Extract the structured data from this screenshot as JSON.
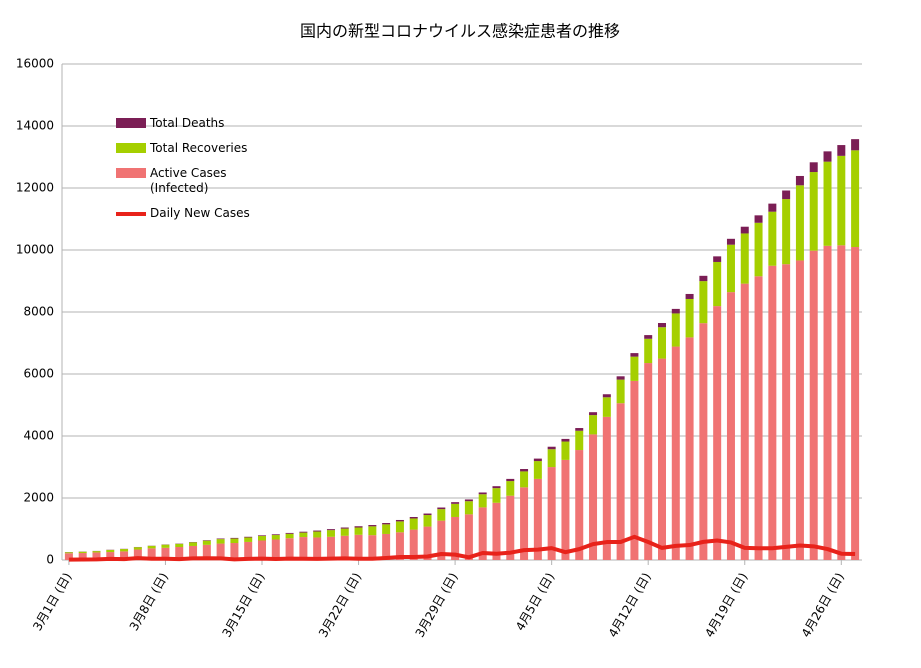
{
  "chart_data": {
    "type": "bar",
    "stacked": true,
    "title": "国内の新型コロナウイルス感染症患者の推移",
    "categories": [
      "3月1日 (日)",
      null,
      null,
      null,
      null,
      null,
      null,
      "3月8日 (日)",
      null,
      null,
      null,
      null,
      null,
      null,
      "3月15日 (日)",
      null,
      null,
      null,
      null,
      null,
      null,
      "3月22日 (日)",
      null,
      null,
      null,
      null,
      null,
      null,
      "3月29日 (日)",
      null,
      null,
      null,
      null,
      null,
      null,
      "4月5日 (日)",
      null,
      null,
      null,
      null,
      null,
      null,
      "4月12日 (日)",
      null,
      null,
      null,
      null,
      null,
      null,
      "4月19日 (日)",
      null,
      null,
      null,
      null,
      null,
      null,
      "4月26日 (日)",
      null
    ],
    "series": [
      {
        "name": "Active Cases (Infected)",
        "color": "#f07373",
        "values": [
          218,
          225,
          244,
          256,
          278,
          338,
          375,
          393,
          419,
          453,
          489,
          530,
          548,
          583,
          629,
          661,
          702,
          740,
          727,
          748,
          781,
          813,
          801,
          840,
          893,
          981,
          1078,
          1269,
          1388,
          1473,
          1697,
          1846,
          2074,
          2344,
          2616,
          2998,
          3229,
          3547,
          4052,
          4617,
          5057,
          5777,
          6353,
          6497,
          6885,
          7181,
          7640,
          8190,
          8641,
          8915,
          9152,
          9492,
          9542,
          9663,
          9979,
          10135,
          10151,
          10096
        ]
      },
      {
        "name": "Total Recoveries",
        "color": "#a5cf00",
        "values": [
          32,
          43,
          43,
          69,
          76,
          76,
          80,
          102,
          102,
          118,
          135,
          144,
          144,
          144,
          144,
          144,
          144,
          144,
          191,
          215,
          232,
          235,
          285,
          310,
          353,
          359,
          372,
          372,
          424,
          424,
          424,
          472,
          472,
          514,
          575,
          575,
          592,
          622,
          622,
          632,
          762,
          783,
          783,
          1012,
          1069,
          1239,
          1356,
          1424,
          1530,
          1619,
          1726,
          1744,
          2100,
          2424,
          2536,
          2715,
          2886,
          3120
        ]
      },
      {
        "name": "Total Deaths",
        "color": "#7b1e55",
        "values": [
          6,
          6,
          6,
          6,
          6,
          6,
          6,
          7,
          9,
          10,
          15,
          19,
          21,
          22,
          22,
          24,
          27,
          29,
          32,
          33,
          35,
          41,
          42,
          43,
          45,
          47,
          49,
          52,
          54,
          56,
          57,
          63,
          70,
          77,
          80,
          81,
          85,
          88,
          94,
          98,
          107,
          114,
          119,
          136,
          146,
          162,
          171,
          181,
          190,
          217,
          240,
          260,
          277,
          301,
          314,
          332,
          348,
          360
        ]
      },
      {
        "name": "Daily New Cases",
        "type": "line",
        "color": "#e8221a",
        "values": [
          14,
          18,
          19,
          38,
          29,
          60,
          41,
          41,
          28,
          51,
          58,
          54,
          20,
          36,
          46,
          34,
          44,
          40,
          37,
          46,
          52,
          41,
          39,
          65,
          98,
          96,
          112,
          194,
          173,
          87,
          225,
          203,
          235,
          319,
          336,
          383,
          252,
          351,
          511,
          579,
          579,
          748,
          581,
          390,
          455,
          482,
          585,
          628,
          566,
          390,
          378,
          378,
          423,
          469,
          441,
          353,
          203,
          194
        ]
      }
    ],
    "legend_order": [
      2,
      1,
      0,
      3
    ],
    "ylim": [
      0,
      16000
    ],
    "yticks": [
      0,
      2000,
      4000,
      6000,
      8000,
      10000,
      12000,
      14000,
      16000
    ],
    "grid": true
  }
}
